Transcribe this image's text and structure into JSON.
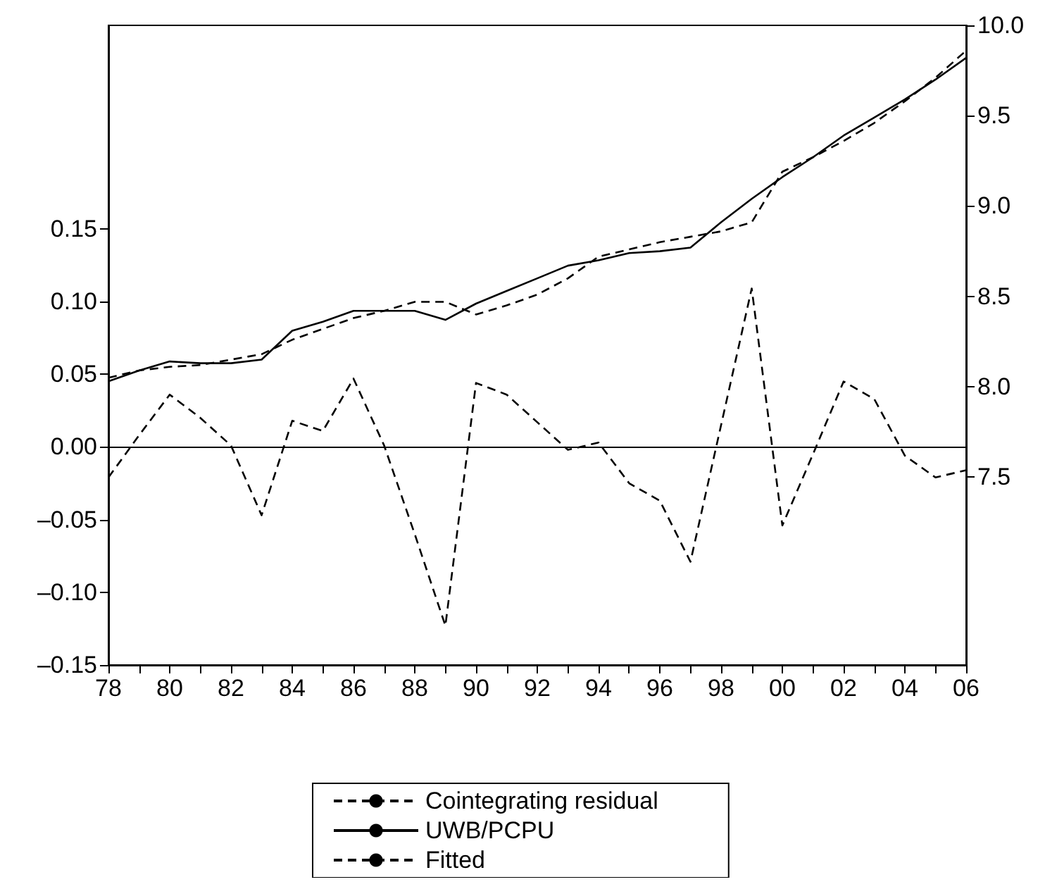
{
  "chart_data": {
    "type": "line",
    "x": [
      1978,
      1979,
      1980,
      1981,
      1982,
      1983,
      1984,
      1985,
      1986,
      1987,
      1988,
      1989,
      1990,
      1991,
      1992,
      1993,
      1994,
      1995,
      1996,
      1997,
      1998,
      1999,
      2000,
      2001,
      2002,
      2003,
      2004,
      2005,
      2006
    ],
    "series": [
      {
        "name": "Cointegrating residual",
        "color": "#000000",
        "line_style": "dashed",
        "values": [
          -0.021,
          0.008,
          0.036,
          0.02,
          0.001,
          -0.047,
          0.018,
          0.011,
          0.047,
          0.001,
          -0.06,
          -0.123,
          0.044,
          0.036,
          0.017,
          -0.002,
          0.003,
          -0.025,
          -0.037,
          -0.079,
          0.015,
          0.109,
          -0.054,
          -0.005,
          0.045,
          0.033,
          -0.006,
          -0.021,
          -0.016
        ]
      },
      {
        "name": "UWB/PCPU",
        "color": "#000000",
        "line_style": "solid",
        "axis": "y2",
        "values": [
          8.03,
          8.09,
          8.14,
          8.13,
          8.13,
          8.15,
          8.31,
          8.36,
          8.42,
          8.42,
          8.42,
          8.37,
          8.46,
          8.53,
          8.6,
          8.67,
          8.7,
          8.74,
          8.75,
          8.77,
          8.91,
          9.04,
          9.16,
          9.27,
          9.39,
          9.49,
          9.59,
          9.7,
          9.82
        ]
      },
      {
        "name": "Fitted",
        "color": "#000000",
        "line_style": "dashed",
        "axis": "y2",
        "values": [
          8.05,
          8.09,
          8.11,
          8.12,
          8.15,
          8.18,
          8.26,
          8.32,
          8.38,
          8.42,
          8.47,
          8.47,
          8.4,
          8.45,
          8.51,
          8.6,
          8.72,
          8.76,
          8.8,
          8.83,
          8.86,
          8.91,
          9.19,
          9.27,
          9.36,
          9.46,
          9.58,
          9.71,
          9.86
        ]
      }
    ],
    "xlim": [
      1978,
      2006
    ],
    "xticks": [
      {
        "value": 1978,
        "label": "78"
      },
      {
        "value": 1979,
        "label": null
      },
      {
        "value": 1980,
        "label": "80"
      },
      {
        "value": 1981,
        "label": null
      },
      {
        "value": 1982,
        "label": "82"
      },
      {
        "value": 1983,
        "label": null
      },
      {
        "value": 1984,
        "label": "84"
      },
      {
        "value": 1985,
        "label": null
      },
      {
        "value": 1986,
        "label": "86"
      },
      {
        "value": 1987,
        "label": null
      },
      {
        "value": 1988,
        "label": "88"
      },
      {
        "value": 1989,
        "label": null
      },
      {
        "value": 1990,
        "label": "90"
      },
      {
        "value": 1991,
        "label": null
      },
      {
        "value": 1992,
        "label": "92"
      },
      {
        "value": 1993,
        "label": null
      },
      {
        "value": 1994,
        "label": "94"
      },
      {
        "value": 1995,
        "label": null
      },
      {
        "value": 1996,
        "label": "96"
      },
      {
        "value": 1997,
        "label": null
      },
      {
        "value": 1998,
        "label": "98"
      },
      {
        "value": 1999,
        "label": null
      },
      {
        "value": 2000,
        "label": "00"
      },
      {
        "value": 2001,
        "label": null
      },
      {
        "value": 2002,
        "label": "02"
      },
      {
        "value": 2003,
        "label": null
      },
      {
        "value": 2004,
        "label": "04"
      },
      {
        "value": 2005,
        "label": null
      },
      {
        "value": 2006,
        "label": "06"
      }
    ],
    "ylim": [
      -0.15,
      0.29
    ],
    "yticks": [
      {
        "value": -0.15,
        "label": "–0.15"
      },
      {
        "value": -0.1,
        "label": "–0.10"
      },
      {
        "value": -0.05,
        "label": "–0.05"
      },
      {
        "value": 0,
        "label": "0.00"
      },
      {
        "value": 0.05,
        "label": "0.05"
      },
      {
        "value": 0.1,
        "label": "0.10"
      },
      {
        "value": 0.15,
        "label": "0.15"
      }
    ],
    "y2lim": [
      6.46,
      10.0
    ],
    "y2ticks": [
      {
        "value": 7.5,
        "label": "7.5"
      },
      {
        "value": 8,
        "label": "8.0"
      },
      {
        "value": 8.5,
        "label": "8.5"
      },
      {
        "value": 9,
        "label": "9.0"
      },
      {
        "value": 9.5,
        "label": "9.5"
      },
      {
        "value": 10,
        "label": "10.0"
      }
    ],
    "ref_lines": [
      {
        "axis": "y",
        "value": 0,
        "color": "#000000",
        "line_style": "solid"
      }
    ],
    "grid": false,
    "legend": "bottom",
    "marker": "none"
  }
}
